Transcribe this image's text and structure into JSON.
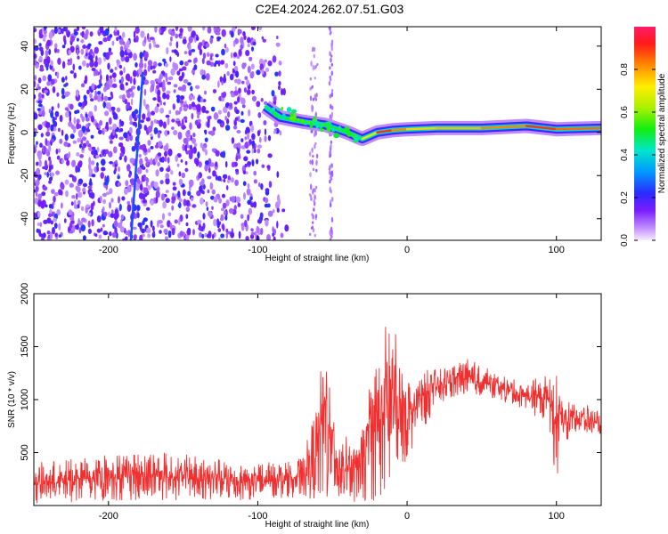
{
  "figure_title": "C2E4.2024.262.07.51.G03",
  "colors": {
    "snr_line": "#f03030",
    "signal_low": "#7a1dff",
    "signal_high": "#ff1530"
  },
  "chart_data": [
    {
      "type": "heatmap",
      "title": "C2E4.2024.262.07.51.G03",
      "xlabel": "Height of straight line (km)",
      "ylabel": "Frequency (Hz)",
      "xlim": [
        -250,
        130
      ],
      "ylim": [
        -50,
        49
      ],
      "x_ticks": [
        -200,
        -100,
        0,
        100
      ],
      "x_tick_labels": [
        "-200",
        "-100",
        "0",
        "100"
      ],
      "y_ticks": [
        -40,
        -20,
        0,
        20,
        40
      ],
      "y_tick_labels": [
        "-40",
        "-20",
        "0",
        "20",
        "40"
      ],
      "colorbar": {
        "label": "Normalized spectral amplitude",
        "range": [
          0,
          1
        ],
        "ticks": [
          0.0,
          0.2,
          0.4,
          0.6,
          0.8
        ],
        "tick_labels": [
          "0.0",
          "0.2",
          "0.4",
          "0.6",
          "0.8"
        ]
      },
      "features": {
        "noise_region_x": [
          -250,
          -80
        ],
        "sparse_noise_strips_x": [
          -65,
          -60,
          -52,
          -50
        ],
        "diagonal_line": {
          "x": [
            -185,
            -177
          ],
          "y": [
            -50,
            28
          ],
          "amplitude": 0.25
        },
        "signal_track": [
          {
            "x": -95,
            "y": 12,
            "amplitude": 0.45
          },
          {
            "x": -85,
            "y": 7,
            "amplitude": 0.5
          },
          {
            "x": -70,
            "y": 5,
            "amplitude": 0.55
          },
          {
            "x": -55,
            "y": 3.5,
            "amplitude": 0.55
          },
          {
            "x": -40,
            "y": 0,
            "amplitude": 0.5
          },
          {
            "x": -30,
            "y": -3,
            "amplitude": 0.45
          },
          {
            "x": -20,
            "y": 0,
            "amplitude": 0.9
          },
          {
            "x": -10,
            "y": 1,
            "amplitude": 0.9
          },
          {
            "x": 0,
            "y": 1.5,
            "amplitude": 0.75
          },
          {
            "x": 20,
            "y": 2,
            "amplitude": 0.75
          },
          {
            "x": 50,
            "y": 2,
            "amplitude": 0.8
          },
          {
            "x": 80,
            "y": 3,
            "amplitude": 0.85
          },
          {
            "x": 100,
            "y": 1.5,
            "amplitude": 0.95
          },
          {
            "x": 130,
            "y": 2,
            "amplitude": 0.75
          }
        ]
      }
    },
    {
      "type": "line",
      "xlabel": "Height of straight line (km)",
      "ylabel": "SNR (10 * v/v)",
      "xlim": [
        -250,
        130
      ],
      "ylim": [
        0,
        2000
      ],
      "x_ticks": [
        -200,
        -100,
        0,
        100
      ],
      "x_tick_labels": [
        "-200",
        "-100",
        "0",
        "100"
      ],
      "y_ticks": [
        500,
        1000,
        1500,
        2000
      ],
      "y_tick_labels": [
        "500",
        "1000",
        "1500",
        "2000"
      ],
      "series": [
        {
          "color": "#f03030",
          "envelope": {
            "x": [
              -250,
              -180,
              -100,
              -70,
              -60,
              -55,
              -50,
              -45,
              -40,
              -30,
              -25,
              -20,
              -15,
              -12,
              -5,
              0,
              20,
              40,
              60,
              80,
              95,
              100,
              110,
              130
            ],
            "lower": [
              20,
              50,
              50,
              80,
              50,
              20,
              30,
              30,
              30,
              30,
              40,
              50,
              100,
              50,
              300,
              450,
              950,
              1050,
              1000,
              900,
              750,
              200,
              700,
              650
            ],
            "upper": [
              400,
              540,
              400,
              450,
              1000,
              1720,
              1000,
              700,
              650,
              700,
              1350,
              1400,
              1700,
              2000,
              1400,
              1250,
              1300,
              1400,
              1250,
              1150,
              1300,
              1350,
              1000,
              900
            ]
          }
        }
      ]
    }
  ]
}
